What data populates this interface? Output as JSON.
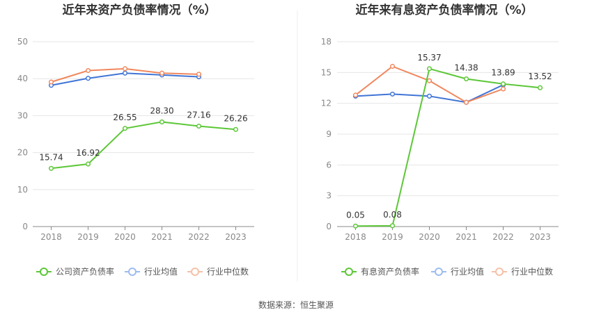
{
  "chart_data": [
    {
      "type": "line",
      "title": "近年来资产负债率情况（%）",
      "categories": [
        "2018",
        "2019",
        "2020",
        "2021",
        "2022",
        "2023"
      ],
      "ylim": [
        0,
        50
      ],
      "yticks": [
        0,
        10,
        20,
        30,
        40,
        50
      ],
      "legend_position": "bottom",
      "grid": true,
      "series": [
        {
          "name": "公司资产负债率",
          "color": "#5cc737",
          "values": [
            15.74,
            16.92,
            26.55,
            28.3,
            27.16,
            26.26
          ],
          "labels": [
            "15.74",
            "16.92",
            "26.55",
            "28.30",
            "27.16",
            "26.26"
          ]
        },
        {
          "name": "行业均值",
          "color": "#3f74d6",
          "values": [
            38.2,
            40.1,
            41.5,
            41.0,
            40.5,
            null
          ]
        },
        {
          "name": "行业中位数",
          "color": "#f0875d",
          "values": [
            39.1,
            42.2,
            42.7,
            41.5,
            41.2,
            null
          ]
        }
      ]
    },
    {
      "type": "line",
      "title": "近年来有息资产负债率情况（%）",
      "categories": [
        "2018",
        "2019",
        "2020",
        "2021",
        "2022",
        "2023"
      ],
      "ylim": [
        0,
        18
      ],
      "yticks": [
        0,
        3,
        6,
        9,
        12,
        15,
        18
      ],
      "legend_position": "bottom",
      "grid": true,
      "series": [
        {
          "name": "有息资产负债率",
          "color": "#5cc737",
          "values": [
            0.05,
            0.08,
            15.37,
            14.38,
            13.89,
            13.52
          ],
          "labels": [
            "0.05",
            "0.08",
            "15.37",
            "14.38",
            "13.89",
            "13.52"
          ]
        },
        {
          "name": "行业均值",
          "color": "#3f74d6",
          "values": [
            12.7,
            12.9,
            12.7,
            12.1,
            13.8,
            null
          ]
        },
        {
          "name": "行业中位数",
          "color": "#f0875d",
          "values": [
            12.8,
            15.6,
            14.2,
            12.1,
            13.4,
            null
          ]
        }
      ]
    }
  ],
  "source_text": "数据来源：恒生聚源"
}
